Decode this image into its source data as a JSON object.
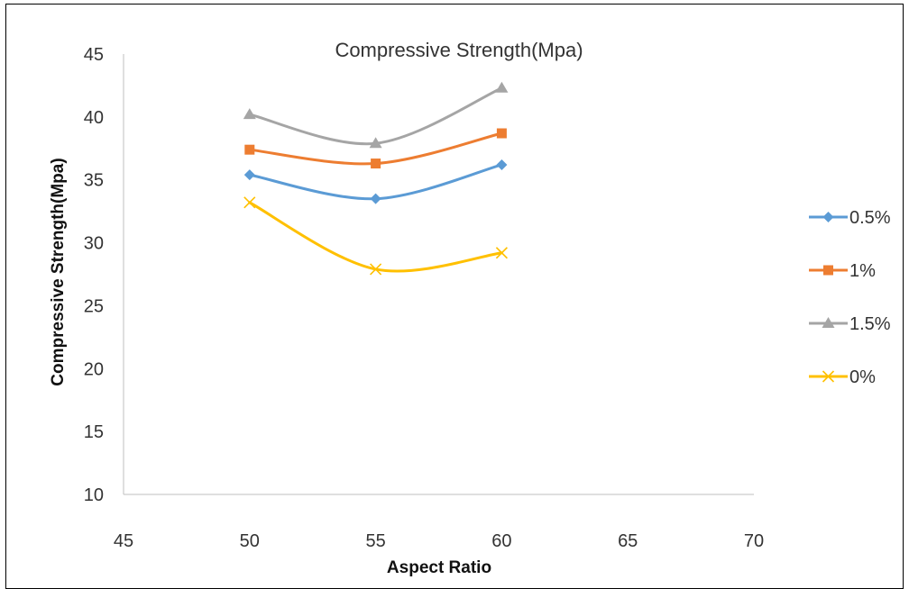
{
  "chart_data": {
    "type": "line",
    "title": "Compressive Strength(Mpa)",
    "xlabel": "Aspect Ratio",
    "ylabel": "Compressive Strength(Mpa)",
    "xlim": [
      45,
      70
    ],
    "ylim": [
      10,
      45
    ],
    "x_ticks": [
      45,
      50,
      55,
      60,
      65,
      70
    ],
    "y_ticks": [
      10,
      15,
      20,
      25,
      30,
      35,
      40,
      45
    ],
    "grid": false,
    "smooth": true,
    "legend_position": "right",
    "series": [
      {
        "name": "0.5%",
        "color": "#5b9bd5",
        "marker": "diamond",
        "x": [
          50,
          55,
          60
        ],
        "y": [
          35.4,
          33.5,
          36.2
        ]
      },
      {
        "name": "1%",
        "color": "#ed7d31",
        "marker": "square",
        "x": [
          50,
          55,
          60
        ],
        "y": [
          37.4,
          36.3,
          38.7
        ]
      },
      {
        "name": "1.5%",
        "color": "#a5a5a5",
        "marker": "triangle",
        "x": [
          50,
          55,
          60
        ],
        "y": [
          40.2,
          37.9,
          42.3
        ]
      },
      {
        "name": "0%",
        "color": "#ffc000",
        "marker": "x",
        "x": [
          50,
          55,
          60
        ],
        "y": [
          33.2,
          27.9,
          29.2
        ]
      }
    ]
  }
}
